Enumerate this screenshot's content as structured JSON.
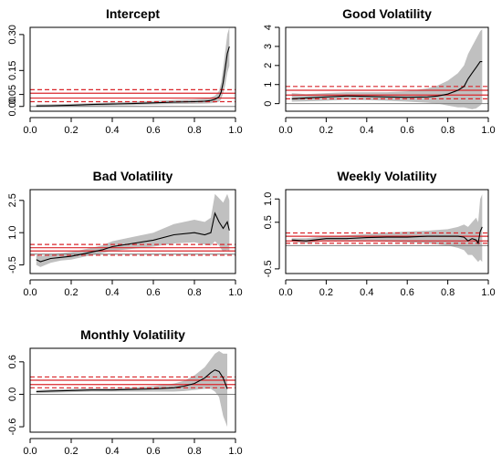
{
  "colors": {
    "band": "#c0c0c0",
    "estimate": "#000000",
    "reference": "#d9262b",
    "zero_line": "#7f7f7f"
  },
  "chart_data": [
    {
      "type": "area",
      "title": "Intercept",
      "xlabel": "",
      "ylabel": "",
      "xlim": [
        0.0,
        1.0
      ],
      "ylim": [
        -0.02,
        0.33
      ],
      "xticks": [
        "0.0",
        "0.2",
        "0.4",
        "0.6",
        "0.8",
        "1.0"
      ],
      "yticks": [
        "0.00",
        "0.05",
        "0.15",
        "0.30"
      ],
      "ytick_values": [
        0.0,
        0.05,
        0.15,
        0.3
      ],
      "zero_line": 0.0,
      "reference_lines": {
        "solid": [
          0.035,
          0.055
        ],
        "dashed": [
          0.02,
          0.07
        ]
      },
      "x": [
        0.03,
        0.1,
        0.2,
        0.3,
        0.4,
        0.5,
        0.6,
        0.7,
        0.8,
        0.85,
        0.88,
        0.9,
        0.92,
        0.93,
        0.94,
        0.95,
        0.96,
        0.97
      ],
      "estimate": [
        0.002,
        0.003,
        0.005,
        0.008,
        0.01,
        0.012,
        0.015,
        0.018,
        0.02,
        0.022,
        0.025,
        0.03,
        0.04,
        0.06,
        0.1,
        0.16,
        0.22,
        0.25
      ],
      "lower": [
        -0.003,
        -0.002,
        0.0,
        0.002,
        0.004,
        0.006,
        0.008,
        0.01,
        0.011,
        0.012,
        0.013,
        0.015,
        0.02,
        0.03,
        0.055,
        0.09,
        0.14,
        0.17
      ],
      "upper": [
        0.008,
        0.009,
        0.011,
        0.014,
        0.017,
        0.02,
        0.023,
        0.027,
        0.03,
        0.033,
        0.038,
        0.045,
        0.065,
        0.1,
        0.16,
        0.23,
        0.3,
        0.33
      ]
    },
    {
      "type": "area",
      "title": "Good Volatility",
      "xlabel": "",
      "ylabel": "",
      "xlim": [
        0.0,
        1.0
      ],
      "ylim": [
        -0.4,
        4.0
      ],
      "xticks": [
        "0.0",
        "0.2",
        "0.4",
        "0.6",
        "0.8",
        "1.0"
      ],
      "yticks": [
        "0",
        "1",
        "2",
        "3",
        "4"
      ],
      "ytick_values": [
        0,
        1,
        2,
        3,
        4
      ],
      "zero_line": 0.0,
      "reference_lines": {
        "solid": [
          0.45,
          0.7
        ],
        "dashed": [
          0.25,
          0.9
        ]
      },
      "x": [
        0.03,
        0.1,
        0.2,
        0.3,
        0.4,
        0.5,
        0.6,
        0.7,
        0.75,
        0.8,
        0.85,
        0.88,
        0.9,
        0.92,
        0.94,
        0.96,
        0.97
      ],
      "estimate": [
        0.25,
        0.3,
        0.35,
        0.4,
        0.38,
        0.35,
        0.33,
        0.35,
        0.4,
        0.5,
        0.7,
        0.9,
        1.3,
        1.6,
        1.9,
        2.2,
        2.2
      ],
      "lower": [
        0.1,
        0.12,
        0.15,
        0.2,
        0.18,
        0.15,
        0.1,
        0.05,
        0.0,
        -0.1,
        -0.2,
        -0.2,
        -0.25,
        -0.3,
        -0.25,
        -0.1,
        0.0
      ],
      "upper": [
        0.55,
        0.5,
        0.55,
        0.6,
        0.6,
        0.6,
        0.65,
        0.8,
        0.95,
        1.2,
        1.6,
        2.0,
        2.6,
        3.0,
        3.4,
        3.8,
        3.9
      ]
    },
    {
      "type": "area",
      "title": "Bad Volatility",
      "xlabel": "",
      "ylabel": "",
      "xlim": [
        0.0,
        1.0
      ],
      "ylim": [
        -0.9,
        3.0
      ],
      "xticks": [
        "0.0",
        "0.2",
        "0.4",
        "0.6",
        "0.8",
        "1.0"
      ],
      "yticks": [
        "-0.5",
        "1.0",
        "2.5"
      ],
      "ytick_values": [
        -0.5,
        1.0,
        2.5
      ],
      "zero_line": 0.0,
      "reference_lines": {
        "solid": [
          0.15,
          0.3
        ],
        "dashed": [
          -0.05,
          0.45
        ]
      },
      "x": [
        0.03,
        0.05,
        0.1,
        0.15,
        0.2,
        0.25,
        0.3,
        0.35,
        0.4,
        0.5,
        0.6,
        0.7,
        0.8,
        0.85,
        0.88,
        0.9,
        0.92,
        0.94,
        0.96,
        0.97
      ],
      "estimate": [
        -0.25,
        -0.35,
        -0.2,
        -0.15,
        -0.1,
        0.0,
        0.1,
        0.2,
        0.35,
        0.5,
        0.65,
        0.9,
        1.0,
        0.9,
        1.0,
        1.9,
        1.5,
        1.2,
        1.5,
        1.1
      ],
      "lower": [
        -0.5,
        -0.6,
        -0.4,
        -0.3,
        -0.25,
        -0.15,
        -0.05,
        0.05,
        0.15,
        0.25,
        0.35,
        0.5,
        0.55,
        0.45,
        0.4,
        0.6,
        0.4,
        0.1,
        0.2,
        0.1
      ],
      "upper": [
        -0.05,
        -0.1,
        0.0,
        0.05,
        0.1,
        0.2,
        0.3,
        0.4,
        0.6,
        0.8,
        1.0,
        1.4,
        1.6,
        1.5,
        1.7,
        2.8,
        2.6,
        2.4,
        2.8,
        2.5
      ]
    },
    {
      "type": "area",
      "title": "Weekly Volatility",
      "xlabel": "",
      "ylabel": "",
      "xlim": [
        0.0,
        1.0
      ],
      "ylim": [
        -0.6,
        1.2
      ],
      "xticks": [
        "0.0",
        "0.2",
        "0.4",
        "0.6",
        "0.8",
        "1.0"
      ],
      "yticks": [
        "-0.5",
        "0.5",
        "1.0"
      ],
      "ytick_values": [
        -0.5,
        0.5,
        1.0
      ],
      "zero_line": 0.0,
      "reference_lines": {
        "solid": [
          0.1,
          0.2
        ],
        "dashed": [
          0.05,
          0.27
        ]
      },
      "x": [
        0.03,
        0.1,
        0.2,
        0.3,
        0.4,
        0.5,
        0.6,
        0.7,
        0.8,
        0.85,
        0.88,
        0.9,
        0.92,
        0.94,
        0.95,
        0.96,
        0.97
      ],
      "estimate": [
        0.12,
        0.1,
        0.15,
        0.15,
        0.17,
        0.18,
        0.18,
        0.2,
        0.2,
        0.2,
        0.18,
        0.1,
        0.15,
        0.12,
        0.05,
        0.3,
        0.4
      ],
      "lower": [
        0.08,
        0.05,
        0.1,
        0.1,
        0.1,
        0.08,
        0.07,
        0.05,
        0.0,
        -0.05,
        -0.1,
        -0.2,
        -0.2,
        -0.3,
        -0.35,
        -0.3,
        -0.35
      ],
      "upper": [
        0.16,
        0.16,
        0.2,
        0.22,
        0.25,
        0.28,
        0.3,
        0.32,
        0.35,
        0.4,
        0.45,
        0.4,
        0.5,
        0.6,
        0.5,
        1.0,
        1.1
      ]
    },
    {
      "type": "area",
      "title": "Monthly Volatility",
      "xlabel": "",
      "ylabel": "",
      "xlim": [
        0.0,
        1.0
      ],
      "ylim": [
        -0.7,
        0.85
      ],
      "xticks": [
        "0.0",
        "0.2",
        "0.4",
        "0.6",
        "0.8",
        "1.0"
      ],
      "yticks": [
        "-0.6",
        "0.0",
        "0.6"
      ],
      "ytick_values": [
        -0.6,
        0.0,
        0.6
      ],
      "zero_line": 0.0,
      "reference_lines": {
        "solid": [
          0.18,
          0.26
        ],
        "dashed": [
          0.12,
          0.32
        ]
      },
      "x": [
        0.03,
        0.1,
        0.2,
        0.3,
        0.4,
        0.5,
        0.6,
        0.7,
        0.75,
        0.8,
        0.85,
        0.88,
        0.9,
        0.92,
        0.94,
        0.96
      ],
      "estimate": [
        0.05,
        0.06,
        0.07,
        0.08,
        0.08,
        0.09,
        0.1,
        0.12,
        0.15,
        0.2,
        0.3,
        0.4,
        0.45,
        0.42,
        0.3,
        0.1
      ],
      "lower": [
        0.02,
        0.03,
        0.04,
        0.05,
        0.05,
        0.05,
        0.05,
        0.05,
        0.06,
        0.08,
        0.1,
        0.1,
        0.05,
        -0.05,
        -0.4,
        -0.6
      ],
      "upper": [
        0.08,
        0.09,
        0.1,
        0.11,
        0.11,
        0.13,
        0.15,
        0.2,
        0.25,
        0.35,
        0.5,
        0.65,
        0.75,
        0.8,
        0.75,
        0.75
      ]
    }
  ]
}
